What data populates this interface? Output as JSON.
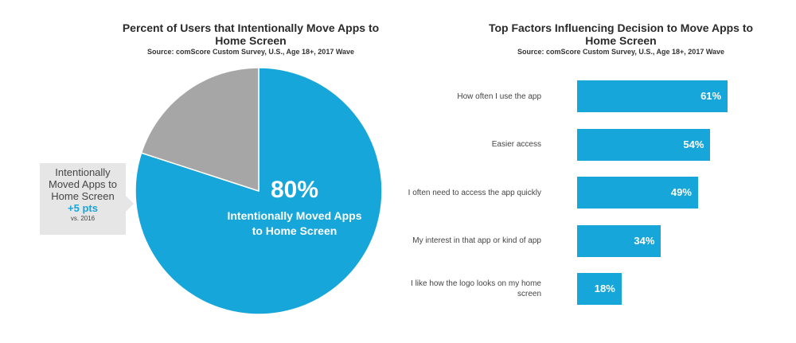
{
  "chart_data": [
    {
      "type": "pie",
      "title": "Percent of Users that Intentionally Move Apps to Home Screen",
      "subtitle": "Source: comScore Custom Survey, U.S., Age 18+, 2017 Wave",
      "slices": [
        {
          "label": "Intentionally Moved Apps to Home Screen",
          "value": 80,
          "display": "80%",
          "color": "#16a6d9"
        },
        {
          "label": "",
          "value": 20,
          "color": "#a6a6a6"
        }
      ],
      "annotation": {
        "text": "Intentionally Moved Apps to Home Screen",
        "change": "+5 pts",
        "note": "vs. 2016"
      }
    },
    {
      "type": "bar",
      "orientation": "horizontal",
      "title": "Top Factors Influencing Decision to Move Apps to Home Screen",
      "subtitle": "Source: comScore Custom Survey, U.S., Age 18+, 2017 Wave",
      "categories": [
        "How often I use the app",
        "Easier access",
        "I often need to access the app quickly",
        "My interest in that app or kind of app",
        "I like how the logo looks on my home screen"
      ],
      "values": [
        61,
        54,
        49,
        34,
        18
      ],
      "value_labels": [
        "61%",
        "54%",
        "49%",
        "34%",
        "18%"
      ],
      "color": "#16a6d9",
      "xlim": [
        0,
        100
      ]
    }
  ]
}
